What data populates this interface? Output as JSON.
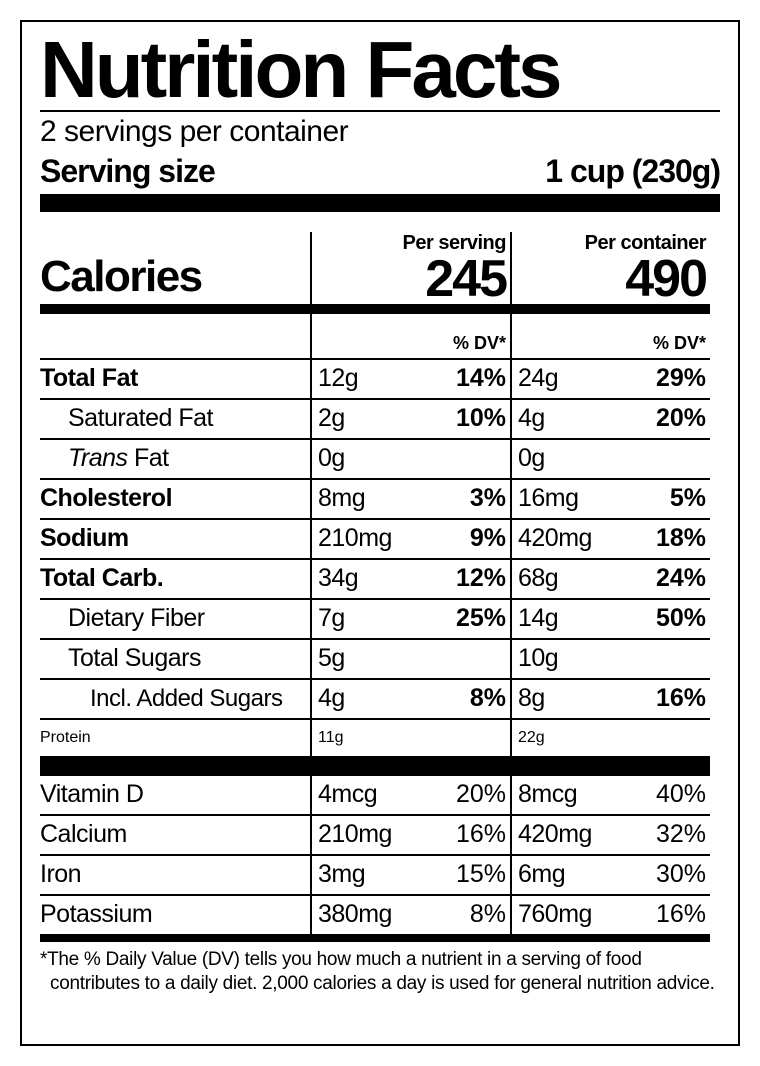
{
  "title": "Nutrition Facts",
  "servings_per_container": "2 servings per container",
  "serving_size_label": "Serving size",
  "serving_size_value": "1 cup (230g)",
  "calories_label": "Calories",
  "per_serving_label": "Per serving",
  "per_container_label": "Per container",
  "calories_per_serving": "245",
  "calories_per_container": "490",
  "dv_header": "% DV*",
  "nutrients": [
    {
      "label": "Total Fat",
      "style": "bold",
      "serv_amt": "12g",
      "serv_dv": "14%",
      "cont_amt": "24g",
      "cont_dv": "29%"
    },
    {
      "label": "Saturated Fat",
      "style": "reg",
      "serv_amt": "2g",
      "serv_dv": "10%",
      "cont_amt": "4g",
      "cont_dv": "20%"
    },
    {
      "label_pre": "Trans",
      "label_post": " Fat",
      "style": "reg-italic",
      "serv_amt": "0g",
      "serv_dv": "",
      "cont_amt": "0g",
      "cont_dv": ""
    },
    {
      "label": "Cholesterol",
      "style": "bold",
      "serv_amt": "8mg",
      "serv_dv": "3%",
      "cont_amt": "16mg",
      "cont_dv": "5%"
    },
    {
      "label": "Sodium",
      "style": "bold",
      "serv_amt": "210mg",
      "serv_dv": "9%",
      "cont_amt": "420mg",
      "cont_dv": "18%"
    },
    {
      "label": "Total Carb.",
      "style": "bold",
      "serv_amt": "34g",
      "serv_dv": "12%",
      "cont_amt": "68g",
      "cont_dv": "24%"
    },
    {
      "label": "Dietary Fiber",
      "style": "reg",
      "serv_amt": "7g",
      "serv_dv": "25%",
      "cont_amt": "14g",
      "cont_dv": "50%"
    },
    {
      "label": "Total Sugars",
      "style": "reg",
      "serv_amt": "5g",
      "serv_dv": "",
      "cont_amt": "10g",
      "cont_dv": ""
    },
    {
      "label": "Incl. Added Sugars",
      "style": "sub",
      "serv_amt": "4g",
      "serv_dv": "8%",
      "cont_amt": "8g",
      "cont_dv": "16%"
    }
  ],
  "protein": {
    "label": "Protein",
    "serv_amt": "11g",
    "cont_amt": "22g"
  },
  "vitamins": [
    {
      "label": "Vitamin D",
      "serv_amt": "4mcg",
      "serv_dv": "20%",
      "cont_amt": "8mcg",
      "cont_dv": "40%"
    },
    {
      "label": "Calcium",
      "serv_amt": "210mg",
      "serv_dv": "16%",
      "cont_amt": "420mg",
      "cont_dv": "32%"
    },
    {
      "label": "Iron",
      "serv_amt": "3mg",
      "serv_dv": "15%",
      "cont_amt": "6mg",
      "cont_dv": "30%"
    },
    {
      "label": "Potassium",
      "serv_amt": "380mg",
      "serv_dv": "8%",
      "cont_amt": "760mg",
      "cont_dv": "16%"
    }
  ],
  "footnote": "*The % Daily Value (DV) tells you how much a nutrient in a serving of food contributes to a daily diet. 2,000 calories a day is used for general nutrition advice."
}
